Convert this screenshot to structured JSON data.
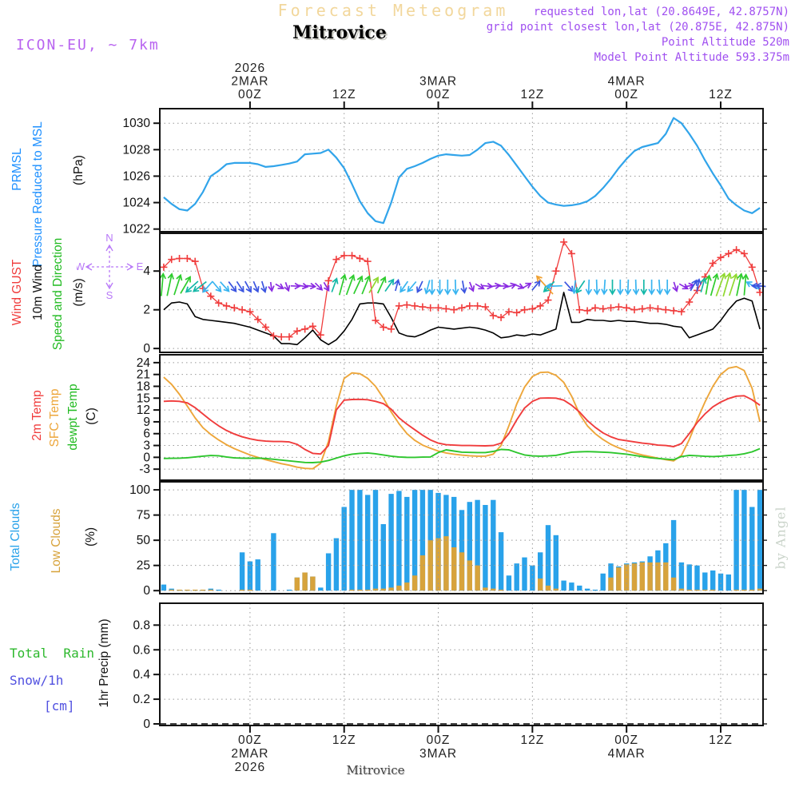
{
  "header": {
    "title": "Forecast Meteogram",
    "station": "Mitrovice",
    "model": "ICON-EU, ~ 7km",
    "info_lines": [
      "requested lon,lat (20.8649E, 42.8757N)",
      "grid point closest lon,lat (20.875E, 42.875N)",
      "Point Altitude 520m",
      "Model Point Altitude 593.375m"
    ]
  },
  "footer": {
    "station": "Mitrovice"
  },
  "watermark": "by Angel",
  "side_labels": {
    "pressure_short": "PRMSL",
    "pressure_long": "Pressure Reduced to MSL",
    "pressure_unit": "(hPa)",
    "gust": "Wind GUST",
    "wind10": "10m Wind",
    "speed_dir": "Speed and Direction",
    "wind_unit": "(m/s)",
    "t2m": "2m Temp",
    "sfc": "SFC Temp",
    "dewpt": "dewpt Temp",
    "temp_unit": "(C)",
    "total_clouds": "Total Clouds",
    "low_clouds": "Low Clouds",
    "clouds_unit": "(%)",
    "rain": "Total  Rain",
    "snow": "Snow/1h",
    "snow_unit": "[cm]",
    "precip_unit": "1hr Precip (mm)"
  },
  "compass": {
    "n": "N",
    "e": "E",
    "s": "S",
    "w": "W"
  },
  "colors": {
    "pressure_line": "#31a4ea",
    "pressure_label": "#1e90ff",
    "red": "#f03c3c",
    "black": "#111111",
    "green": "#2dc62d",
    "orange": "#eda63a",
    "cloud_total": "#29a2ea",
    "cloud_low": "#d7a33c",
    "snow_label": "#5050e0",
    "violet": "#b878f8",
    "purple_info": "#a050f0",
    "title_wheat": "#f2d79c",
    "grid": "#999999",
    "frame": "#111111",
    "watermark": "#c9d3c9"
  },
  "chart_data": {
    "type": "meteogram (stacked line/bar panels, shared time axis)",
    "time_axis": {
      "note": "hours relative to 2MAR2026 00Z, hourly data",
      "h_start": -11,
      "h_step": 1,
      "n": 77,
      "h_min": -11.5,
      "h_max": 65.4,
      "major_ticks_h": [
        0,
        12,
        24,
        36,
        48,
        60
      ],
      "top_labels": [
        [
          "2026",
          "2MAR",
          "00Z"
        ],
        [
          "12Z"
        ],
        [
          "3MAR",
          "00Z"
        ],
        [
          "12Z"
        ],
        [
          "4MAR",
          "00Z"
        ],
        [
          "12Z"
        ]
      ],
      "bottom_labels": [
        [
          "00Z",
          "2MAR",
          "2026"
        ],
        [
          "12Z"
        ],
        [
          "00Z",
          "3MAR"
        ],
        [
          "12Z"
        ],
        [
          "00Z",
          "4MAR"
        ],
        [
          "12Z"
        ]
      ]
    },
    "pressure": {
      "type": "line",
      "ylabel": "Pressure Reduced to MSL (hPa)",
      "yticks": [
        1022,
        1024,
        1026,
        1028,
        1030
      ],
      "prmsl": [
        1024.4,
        1023.9,
        1023.5,
        1023.4,
        1023.9,
        1024.8,
        1026.0,
        1026.4,
        1026.9,
        1027.0,
        1027.0,
        1027.0,
        1026.9,
        1026.7,
        1026.75,
        1026.85,
        1026.95,
        1027.1,
        1027.65,
        1027.7,
        1027.75,
        1028.0,
        1027.4,
        1026.6,
        1025.4,
        1024.1,
        1023.2,
        1022.6,
        1022.45,
        1024.0,
        1025.9,
        1026.55,
        1026.75,
        1027.0,
        1027.3,
        1027.55,
        1027.65,
        1027.6,
        1027.55,
        1027.6,
        1028.0,
        1028.5,
        1028.6,
        1028.3,
        1027.6,
        1026.8,
        1026.0,
        1025.2,
        1024.5,
        1024.0,
        1023.85,
        1023.75,
        1023.8,
        1023.9,
        1024.1,
        1024.5,
        1025.1,
        1025.8,
        1026.6,
        1027.3,
        1027.9,
        1028.2,
        1028.35,
        1028.5,
        1029.2,
        1030.4,
        1030.0,
        1029.2,
        1028.3,
        1027.2,
        1026.2,
        1025.3,
        1024.3,
        1023.8,
        1023.4,
        1023.2,
        1023.6
      ]
    },
    "wind": {
      "type": "line+markers+direction-arrows",
      "ylabel": "10m Wind Speed and Direction (m/s)",
      "yticks": [
        0,
        2,
        4
      ],
      "gust": [
        4.2,
        4.6,
        4.65,
        4.65,
        4.5,
        3.1,
        2.7,
        2.35,
        2.2,
        2.1,
        2.0,
        1.9,
        1.5,
        1.1,
        0.65,
        0.6,
        0.6,
        0.9,
        1.0,
        1.15,
        0.7,
        3.5,
        4.6,
        4.8,
        4.8,
        4.65,
        4.5,
        1.45,
        1.1,
        1.0,
        2.2,
        2.25,
        2.2,
        2.15,
        2.1,
        2.1,
        2.05,
        2.0,
        2.1,
        2.2,
        2.2,
        2.15,
        1.7,
        1.6,
        1.9,
        1.85,
        2.0,
        2.05,
        2.2,
        2.5,
        4.0,
        5.5,
        4.9,
        2.0,
        1.95,
        2.1,
        2.05,
        2.1,
        2.15,
        2.1,
        2.0,
        2.05,
        2.1,
        2.05,
        2.0,
        1.95,
        1.9,
        2.4,
        3.0,
        3.7,
        4.4,
        4.7,
        4.9,
        5.1,
        4.9,
        4.2,
        2.9
      ],
      "speed": [
        2.0,
        2.35,
        2.4,
        2.3,
        1.65,
        1.5,
        1.45,
        1.4,
        1.35,
        1.3,
        1.2,
        1.1,
        0.95,
        0.8,
        0.65,
        0.25,
        0.25,
        0.2,
        0.55,
        0.95,
        0.45,
        0.2,
        0.45,
        0.9,
        1.5,
        2.3,
        2.35,
        2.35,
        2.3,
        1.6,
        0.8,
        0.65,
        0.6,
        0.75,
        0.95,
        1.1,
        1.05,
        1.0,
        1.05,
        1.1,
        1.05,
        0.95,
        0.8,
        0.55,
        0.6,
        0.7,
        0.65,
        0.75,
        0.7,
        0.85,
        1.0,
        2.9,
        1.35,
        1.35,
        1.5,
        1.45,
        1.45,
        1.4,
        1.45,
        1.4,
        1.4,
        1.35,
        1.3,
        1.3,
        1.25,
        1.15,
        1.1,
        0.55,
        0.7,
        0.85,
        1.0,
        1.45,
        2.0,
        2.45,
        2.6,
        2.45,
        1.0
      ],
      "arrow_colors": {
        "g": "#2ecc2e",
        "lg": "#90d830",
        "t": "#14b8a8",
        "c": "#38b4f0",
        "b": "#3b55e0",
        "p": "#8a2be2",
        "o": "#f0a030"
      },
      "arrows": [
        [
          -11.2,
          5,
          "g",
          28
        ],
        [
          -10.3,
          12,
          "g",
          28
        ],
        [
          -9.3,
          18,
          "g",
          26
        ],
        [
          -8.3,
          30,
          "g",
          24
        ],
        [
          -7.3,
          228,
          "t",
          20
        ],
        [
          -6.3,
          233,
          "t",
          20
        ],
        [
          -5.3,
          222,
          "c",
          18
        ],
        [
          -4.3,
          140,
          "c",
          16
        ],
        [
          -3.3,
          138,
          "c",
          16
        ],
        [
          -2.3,
          143,
          "b",
          15
        ],
        [
          -1.3,
          147,
          "b",
          15
        ],
        [
          -0.3,
          151,
          "b",
          15
        ],
        [
          0.7,
          157,
          "b",
          14
        ],
        [
          1.7,
          163,
          "b",
          14
        ],
        [
          2.7,
          172,
          "p",
          11
        ],
        [
          3.7,
          120,
          "p",
          11
        ],
        [
          4.7,
          160,
          "p",
          11
        ],
        [
          5.7,
          92,
          "p",
          11
        ],
        [
          6.7,
          100,
          "p",
          11
        ],
        [
          7.7,
          96,
          "p",
          11
        ],
        [
          8.7,
          135,
          "p",
          12
        ],
        [
          9.7,
          150,
          "p",
          12
        ],
        [
          10.7,
          20,
          "t",
          18
        ],
        [
          11.7,
          15,
          "g",
          26
        ],
        [
          12.7,
          20,
          "g",
          26
        ],
        [
          13.7,
          25,
          "g",
          24
        ],
        [
          14.7,
          22,
          "g",
          24
        ],
        [
          15.7,
          30,
          "lg",
          22
        ],
        [
          16.7,
          25,
          "g",
          22
        ],
        [
          17.7,
          35,
          "t",
          18
        ],
        [
          18.7,
          15,
          "b",
          14
        ],
        [
          19.7,
          215,
          "c",
          16
        ],
        [
          20.7,
          220,
          "c",
          16
        ],
        [
          21.7,
          205,
          "b",
          15
        ],
        [
          22.7,
          195,
          "c",
          17
        ],
        [
          23.2,
          180,
          "c",
          18
        ],
        [
          24.2,
          180,
          "c",
          18
        ],
        [
          25.2,
          180,
          "c",
          18
        ],
        [
          26.2,
          178,
          "c",
          18
        ],
        [
          27.2,
          170,
          "b",
          15
        ],
        [
          28.2,
          158,
          "p",
          12
        ],
        [
          29.2,
          120,
          "p",
          12
        ],
        [
          30.2,
          96,
          "p",
          12
        ],
        [
          31.2,
          82,
          "p",
          12
        ],
        [
          32.2,
          90,
          "p",
          12
        ],
        [
          33.2,
          74,
          "p",
          12
        ],
        [
          34.2,
          112,
          "p",
          12
        ],
        [
          35.2,
          60,
          "p",
          12
        ],
        [
          36.4,
          40,
          "b",
          15
        ],
        [
          37.7,
          318,
          "o",
          30
        ],
        [
          38.2,
          226,
          "t",
          18
        ],
        [
          38.9,
          268,
          "c",
          20
        ],
        [
          40.6,
          138,
          "b",
          16
        ],
        [
          41.4,
          186,
          "c",
          16
        ],
        [
          42.2,
          214,
          "t",
          18
        ],
        [
          43.2,
          182,
          "c",
          18
        ],
        [
          44.2,
          178,
          "c",
          18
        ],
        [
          45.2,
          184,
          "c",
          18
        ],
        [
          46.2,
          180,
          "t",
          18
        ],
        [
          47.2,
          180,
          "c",
          18
        ],
        [
          48.2,
          182,
          "c",
          18
        ],
        [
          49.2,
          178,
          "c",
          18
        ],
        [
          50.2,
          180,
          "t",
          18
        ],
        [
          51.2,
          180,
          "c",
          18
        ],
        [
          52.2,
          176,
          "c",
          18
        ],
        [
          53.2,
          180,
          "c",
          18
        ],
        [
          54.2,
          162,
          "p",
          12
        ],
        [
          55.2,
          120,
          "p",
          12
        ],
        [
          55.9,
          80,
          "p",
          12
        ],
        [
          56.5,
          30,
          "b",
          15
        ],
        [
          57.1,
          10,
          "b",
          15
        ],
        [
          57.7,
          15,
          "t",
          18
        ],
        [
          58.3,
          10,
          "g",
          24
        ],
        [
          59.1,
          16,
          "g",
          28
        ],
        [
          59.9,
          20,
          "lg",
          30
        ],
        [
          60.7,
          16,
          "lg",
          30
        ],
        [
          61.5,
          18,
          "lg",
          28
        ],
        [
          62.3,
          12,
          "g",
          28
        ],
        [
          63.1,
          5,
          "g",
          26
        ],
        [
          64.2,
          300,
          "c",
          18
        ],
        [
          64.8,
          272,
          "b",
          14
        ],
        [
          65.2,
          275,
          "b",
          12
        ]
      ]
    },
    "temp": {
      "type": "line",
      "ylabel": "2m / SFC / dewpoint Temperature (C)",
      "yticks": [
        -3,
        0,
        3,
        6,
        9,
        12,
        15,
        18,
        21,
        24
      ],
      "t2m": [
        14.2,
        14.3,
        14.2,
        13.8,
        12.6,
        11.0,
        9.4,
        8.0,
        6.8,
        5.9,
        5.2,
        4.7,
        4.3,
        4.1,
        4.0,
        4.0,
        3.9,
        3.3,
        2.0,
        1.0,
        0.85,
        3.0,
        12.0,
        14.5,
        14.65,
        14.7,
        14.6,
        14.2,
        13.6,
        12.2,
        10.0,
        8.4,
        7.0,
        5.6,
        4.4,
        3.6,
        3.2,
        3.1,
        3.0,
        3.0,
        2.95,
        2.9,
        3.0,
        3.6,
        6.0,
        9.5,
        12.5,
        14.2,
        15.0,
        15.05,
        15.0,
        14.5,
        13.2,
        11.5,
        9.3,
        7.6,
        6.2,
        5.2,
        4.5,
        4.2,
        3.9,
        3.6,
        3.4,
        3.1,
        3.0,
        2.7,
        3.5,
        6.0,
        8.8,
        11.0,
        12.8,
        14.0,
        14.9,
        15.5,
        15.6,
        14.6,
        13.2
      ],
      "sfc": [
        20.3,
        18.5,
        16.0,
        13.0,
        10.0,
        7.5,
        5.8,
        4.4,
        3.2,
        2.2,
        1.4,
        0.6,
        0.0,
        -0.6,
        -1.1,
        -1.6,
        -2.0,
        -2.5,
        -2.8,
        -2.9,
        -1.5,
        4.0,
        13.0,
        20.0,
        21.4,
        21.2,
        20.0,
        18.0,
        15.0,
        11.5,
        8.5,
        6.0,
        4.3,
        3.1,
        2.3,
        1.6,
        1.1,
        0.8,
        0.55,
        0.4,
        0.3,
        0.3,
        0.8,
        3.0,
        8.0,
        13.5,
        17.8,
        20.5,
        21.5,
        21.6,
        20.8,
        19.0,
        15.5,
        11.0,
        8.0,
        6.0,
        4.5,
        3.3,
        2.4,
        1.7,
        1.1,
        0.6,
        0.2,
        -0.2,
        -0.6,
        -0.9,
        0.5,
        4.5,
        9.5,
        14.0,
        18.0,
        21.0,
        22.6,
        23.0,
        22.0,
        17.5,
        9.0
      ],
      "dewpt": [
        -0.3,
        -0.25,
        -0.2,
        -0.1,
        0.1,
        0.3,
        0.45,
        0.4,
        0.1,
        -0.15,
        -0.2,
        -0.25,
        -0.2,
        -0.3,
        -0.5,
        -0.7,
        -0.9,
        -1.1,
        -1.3,
        -1.35,
        -1.2,
        -0.8,
        -0.2,
        0.4,
        0.8,
        1.0,
        1.1,
        0.9,
        0.6,
        0.3,
        0.1,
        0.0,
        0.0,
        0.05,
        0.1,
        1.2,
        1.9,
        1.6,
        1.3,
        1.25,
        1.2,
        1.2,
        1.5,
        2.0,
        1.9,
        1.2,
        0.6,
        0.35,
        0.3,
        0.35,
        0.5,
        0.9,
        1.3,
        1.4,
        1.45,
        1.4,
        1.3,
        1.2,
        1.0,
        0.8,
        0.5,
        0.2,
        -0.1,
        -0.3,
        -0.45,
        -0.6,
        0.2,
        0.5,
        0.4,
        0.25,
        0.2,
        0.3,
        0.45,
        0.6,
        0.9,
        1.4,
        2.2
      ]
    },
    "clouds": {
      "type": "bar",
      "ylabel": "Total / Low cloud cover (%)",
      "yticks": [
        0,
        25,
        50,
        75,
        100
      ],
      "total": [
        6,
        2,
        1,
        1,
        1,
        1,
        2,
        1,
        0,
        0,
        38,
        29,
        31,
        0,
        57,
        0,
        1,
        13,
        18,
        14,
        3,
        37,
        52,
        83,
        100,
        100,
        95,
        100,
        66,
        96,
        99,
        93,
        100,
        100,
        100,
        97,
        95,
        93,
        80,
        88,
        90,
        85,
        90,
        58,
        15,
        27,
        33,
        25,
        38,
        65,
        55,
        10,
        8,
        5,
        2,
        1,
        17,
        27,
        24,
        27,
        28,
        29,
        34,
        40,
        47,
        70,
        28,
        26,
        25,
        18,
        20,
        17,
        16,
        100,
        100,
        83,
        100
      ],
      "low": [
        0,
        1,
        1,
        1,
        1,
        1,
        1,
        0,
        0,
        0,
        1,
        1,
        0,
        0,
        0,
        0,
        0,
        13,
        18,
        14,
        0,
        0,
        0,
        0,
        1,
        1,
        1,
        2,
        2,
        3,
        5,
        8,
        15,
        35,
        50,
        52,
        54,
        43,
        38,
        30,
        25,
        3,
        2,
        1,
        0,
        0,
        0,
        0,
        12,
        5,
        2,
        0,
        0,
        0,
        0,
        0,
        0,
        13,
        23,
        26,
        27,
        28,
        28,
        28,
        28,
        13,
        2,
        1,
        1,
        1,
        1,
        0,
        0,
        1,
        1,
        1,
        2
      ]
    },
    "precip": {
      "type": "bar",
      "ylabel": "1hr Precip (mm)",
      "yticks": [
        0,
        0.2,
        0.4,
        0.6,
        0.8
      ],
      "series_all_zero": true,
      "note": "no rain or snow in forecast period; dashed zero line only"
    }
  }
}
